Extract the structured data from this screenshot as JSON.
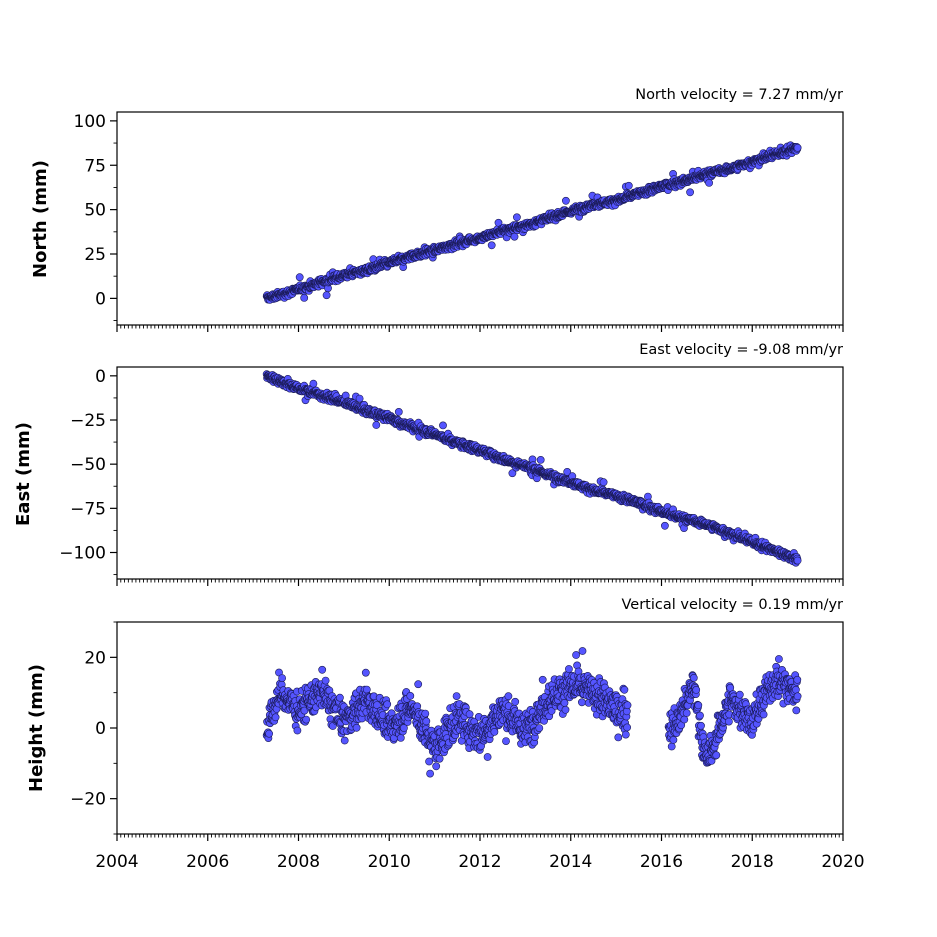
{
  "chart_data": [
    {
      "type": "scatter",
      "title": "North velocity = 7.27 mm/yr",
      "xlabel": "",
      "ylabel": "North (mm)",
      "xlim": [
        2004,
        2020
      ],
      "ylim": [
        -15,
        105
      ],
      "xticks": [
        2004,
        2006,
        2008,
        2010,
        2012,
        2014,
        2016,
        2018,
        2020
      ],
      "yticks": [
        0,
        25,
        50,
        75,
        100
      ],
      "yticklabels": [
        "0",
        "25",
        "50",
        "75",
        "100"
      ],
      "grid": false,
      "marker_color": "#5555ff",
      "trend": {
        "start": [
          2007.3,
          0
        ],
        "end": [
          2019.05,
          85.5
        ],
        "rate_mm_per_yr": 7.27
      },
      "x": [
        2007.3,
        2007.6,
        2008.0,
        2008.5,
        2009.0,
        2009.5,
        2010.0,
        2010.5,
        2011.0,
        2011.5,
        2012.0,
        2012.5,
        2013.0,
        2013.5,
        2014.0,
        2014.5,
        2015.0,
        2015.5,
        2016.0,
        2016.5,
        2017.0,
        2017.5,
        2018.0,
        2018.5,
        2019.0
      ],
      "y": [
        0,
        2,
        5,
        9,
        13,
        16,
        20,
        24,
        27,
        31,
        34,
        38,
        41,
        45,
        49,
        53,
        55,
        59,
        63,
        66,
        70,
        73,
        77,
        81,
        85
      ]
    },
    {
      "type": "scatter",
      "title": "East velocity = -9.08 mm/yr",
      "xlabel": "",
      "ylabel": "East (mm)",
      "xlim": [
        2004,
        2020
      ],
      "ylim": [
        -115,
        5
      ],
      "xticks": [
        2004,
        2006,
        2008,
        2010,
        2012,
        2014,
        2016,
        2018,
        2020
      ],
      "yticks": [
        0,
        -25,
        -50,
        -75,
        -100
      ],
      "yticklabels": [
        "0",
        "−25",
        "−50",
        "−75",
        "−100"
      ],
      "grid": false,
      "marker_color": "#5555ff",
      "trend": {
        "start": [
          2007.3,
          0
        ],
        "end": [
          2019.05,
          -106
        ],
        "rate_mm_per_yr": -9.08
      },
      "x": [
        2007.3,
        2007.6,
        2008.0,
        2008.5,
        2009.0,
        2009.5,
        2010.0,
        2010.5,
        2011.0,
        2011.5,
        2012.0,
        2012.5,
        2013.0,
        2013.5,
        2014.0,
        2014.5,
        2015.0,
        2015.5,
        2016.0,
        2016.5,
        2017.0,
        2017.5,
        2018.0,
        2018.5,
        2019.0
      ],
      "y": [
        0,
        -3,
        -7,
        -11,
        -15,
        -20,
        -24,
        -29,
        -33,
        -38,
        -42,
        -47,
        -51,
        -56,
        -60,
        -65,
        -68,
        -72,
        -77,
        -81,
        -84,
        -89,
        -94,
        -99,
        -104
      ]
    },
    {
      "type": "scatter",
      "title": "Vertical velocity = 0.19 mm/yr",
      "xlabel": "",
      "ylabel": "Height (mm)",
      "xlim": [
        2004,
        2020
      ],
      "ylim": [
        -30,
        30
      ],
      "xticks": [
        2004,
        2006,
        2008,
        2010,
        2012,
        2014,
        2016,
        2018,
        2020
      ],
      "xticklabels": [
        "2004",
        "2006",
        "2008",
        "2010",
        "2012",
        "2014",
        "2016",
        "2018",
        "2020"
      ],
      "yticks": [
        20,
        0,
        -20
      ],
      "yticklabels": [
        "20",
        "0",
        "−20"
      ],
      "grid": false,
      "marker_color": "#5555ff",
      "seasonal_amplitude_mm": 8,
      "x": [
        2007.3,
        2007.6,
        2008.0,
        2008.5,
        2009.0,
        2009.5,
        2010.0,
        2010.5,
        2011.0,
        2011.5,
        2012.0,
        2012.5,
        2013.0,
        2013.5,
        2014.0,
        2014.5,
        2015.0,
        2016.3,
        2016.7,
        2017.0,
        2017.5,
        2018.0,
        2018.5,
        2019.0
      ],
      "y": [
        0,
        10,
        5,
        10,
        2,
        8,
        0,
        6,
        -6,
        3,
        -2,
        5,
        -1,
        8,
        12,
        10,
        5,
        0,
        12,
        -10,
        8,
        2,
        14,
        10
      ]
    }
  ]
}
